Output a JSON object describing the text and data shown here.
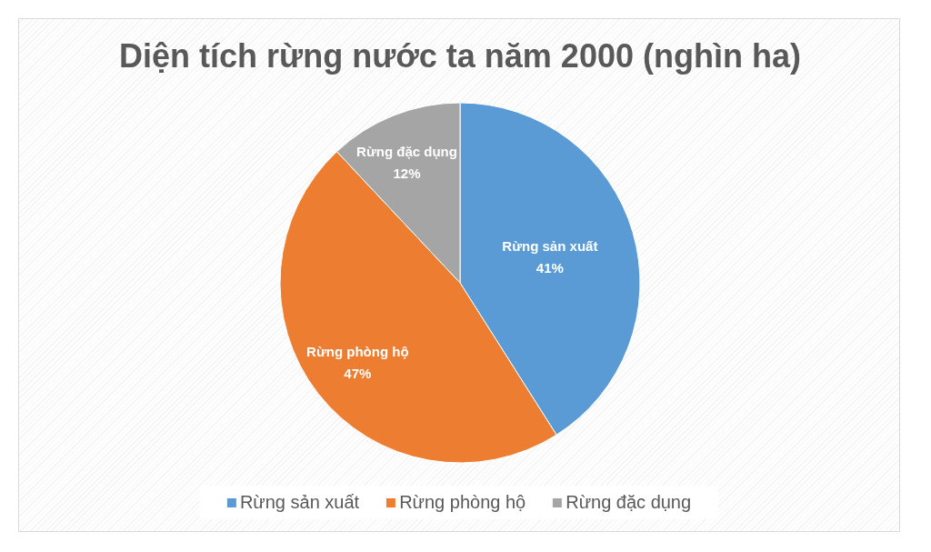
{
  "chart_data": {
    "type": "pie",
    "title": "Diện tích rừng nước ta năm 2000 (nghìn ha)",
    "categories": [
      "Rừng sản xuất",
      "Rừng phòng hộ",
      "Rừng đặc dụng"
    ],
    "values": [
      41,
      47,
      12
    ],
    "colors": [
      "#5b9bd5",
      "#ed7d31",
      "#a5a5a5"
    ],
    "value_labels": [
      "41%",
      "47%",
      "12%"
    ],
    "legend": "bottom"
  }
}
